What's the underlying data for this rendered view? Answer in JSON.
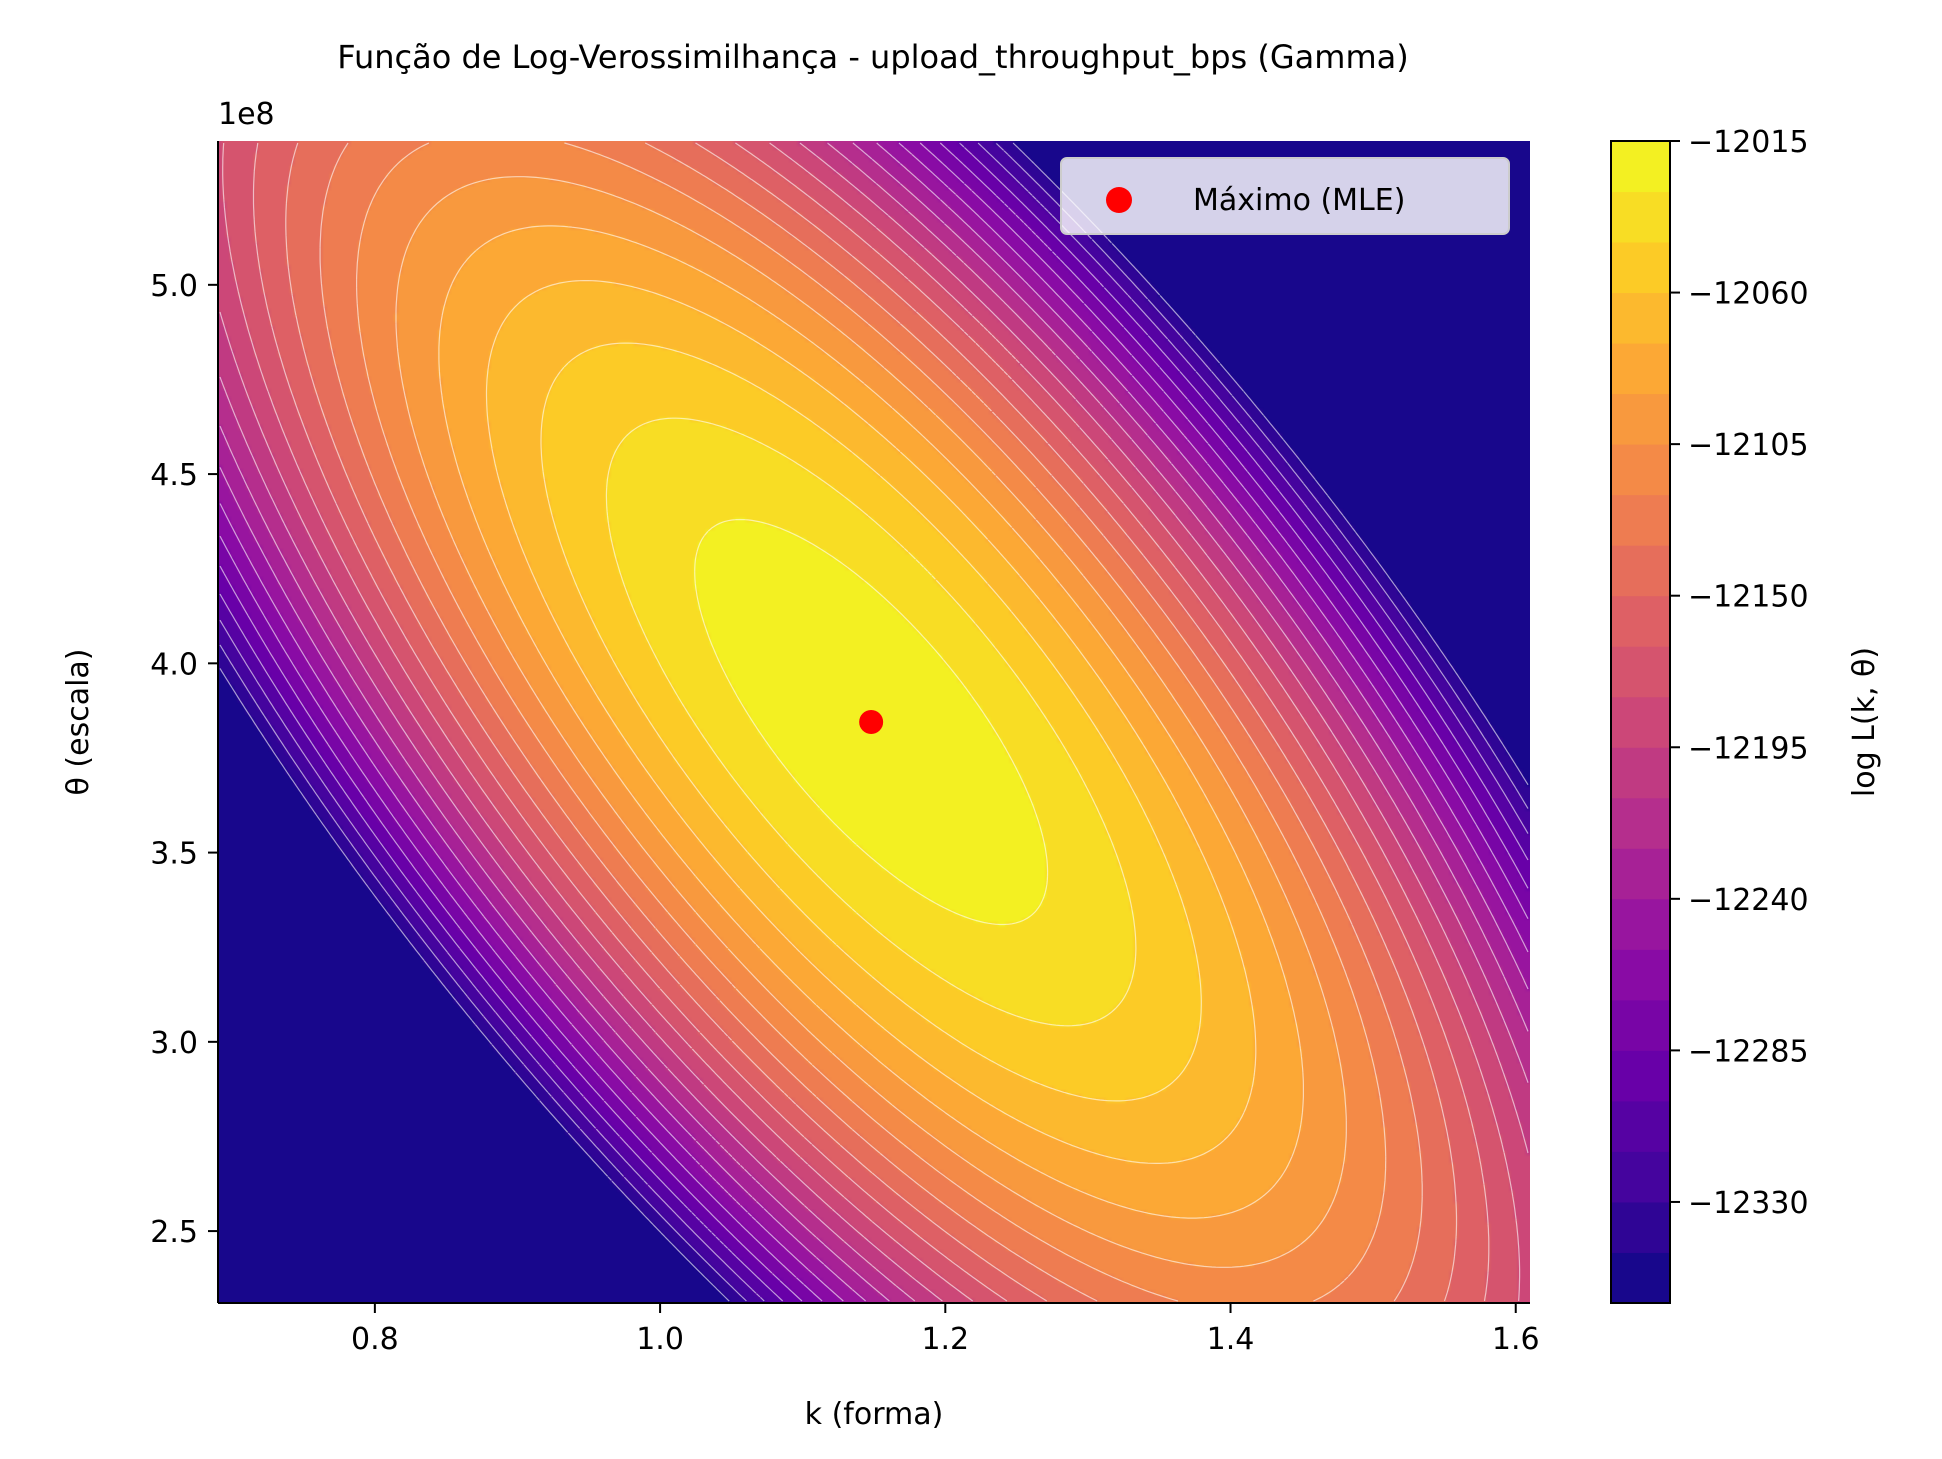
{
  "chart_data": {
    "type": "contour",
    "title": "Função de Log-Verossimilhança - upload_throughput_bps (Gamma)",
    "xlabel": "k (forma)",
    "ylabel": "θ (escala)",
    "y_offset_label": "1e8",
    "y_scale": 100000000,
    "xlim": [
      0.69,
      1.61
    ],
    "ylim": [
      2.31,
      5.38
    ],
    "x_ticks": [
      0.8,
      1.0,
      1.2,
      1.4,
      1.6
    ],
    "x_tick_labels": [
      "0.8",
      "1.0",
      "1.2",
      "1.4",
      "1.6"
    ],
    "y_ticks": [
      2.5,
      3.0,
      3.5,
      4.0,
      4.5,
      5.0
    ],
    "y_tick_labels": [
      "2.5",
      "3.0",
      "3.5",
      "4.0",
      "4.5",
      "5.0"
    ],
    "colorbar": {
      "label": "log L(k, θ)",
      "colormap": "plasma",
      "ticks": [
        -12015,
        -12060,
        -12105,
        -12150,
        -12195,
        -12240,
        -12285,
        -12330
      ],
      "tick_labels": [
        "−12015",
        "−12060",
        "−12105",
        "−12150",
        "−12195",
        "−12240",
        "−12285",
        "−12330"
      ],
      "range": [
        -12360,
        -12015
      ]
    },
    "mle": {
      "k": 1.148,
      "theta": 3.845,
      "label": "Máximo (MLE)",
      "color": "#ff0000"
    },
    "legend_position": "top-right",
    "grid": false
  }
}
